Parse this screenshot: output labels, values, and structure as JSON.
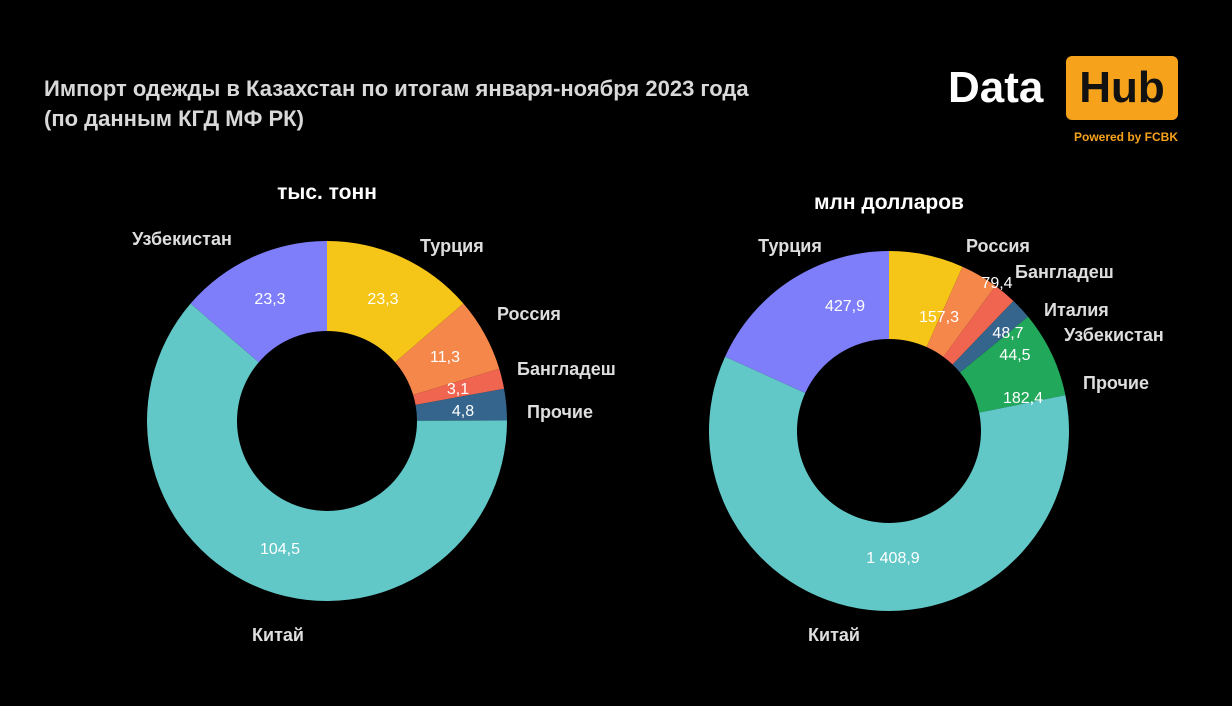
{
  "title_line1": "Импорт одежды в Казахстан по итогам января-ноября 2023 года",
  "title_line2": "(по данным КГД МФ РК)",
  "logo": {
    "data_text": "Data",
    "hub_text": "Hub",
    "powered_text": "Powered by FCBK",
    "accent_color": "#f7a21b"
  },
  "chart_data": [
    {
      "type": "pie",
      "donut": true,
      "title": "тыс. тонн",
      "categories": [
        "Турция",
        "Россия",
        "Бангладеш",
        "Прочие",
        "Китай",
        "Узбекистан"
      ],
      "values": [
        23.3,
        11.3,
        3.1,
        4.8,
        104.5,
        23.3
      ],
      "value_labels": [
        "23,3",
        "11,3",
        "3,1",
        "4,8",
        "104,5",
        "23,3"
      ],
      "colors": [
        "#f5c518",
        "#f5874a",
        "#f06550",
        "#35658c",
        "#62c7c7",
        "#7e7efa"
      ]
    },
    {
      "type": "pie",
      "donut": true,
      "title": "млн долларов",
      "categories": [
        "Россия",
        "Бангладеш",
        "Италия",
        "Узбекистан",
        "Прочие",
        "Китай",
        "Турция"
      ],
      "values": [
        157.3,
        79.4,
        48.7,
        44.5,
        182.4,
        1408.9,
        427.9
      ],
      "value_labels": [
        "157,3",
        "79,4",
        "48,7",
        "44,5",
        "182,4",
        "1 408,9",
        "427,9"
      ],
      "colors": [
        "#f5c518",
        "#f5874a",
        "#f06550",
        "#35658c",
        "#22a85a",
        "#62c7c7",
        "#7e7efa"
      ]
    }
  ]
}
